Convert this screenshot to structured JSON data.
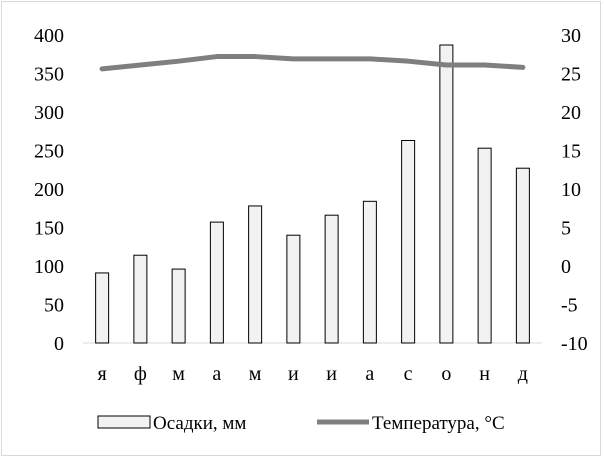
{
  "chart_data": {
    "type": "bar",
    "categories": [
      "я",
      "ф",
      "м",
      "а",
      "м",
      "и",
      "и",
      "а",
      "с",
      "о",
      "н",
      "д"
    ],
    "series": [
      {
        "name": "Осадки, мм",
        "type": "bar",
        "axis": "left",
        "values": [
          91,
          114,
          96,
          157,
          178,
          140,
          166,
          184,
          263,
          387,
          253,
          227
        ]
      },
      {
        "name": "Температура, °С",
        "type": "line",
        "axis": "right",
        "values": [
          25.6,
          26.1,
          26.6,
          27.2,
          27.2,
          26.9,
          26.9,
          26.9,
          26.6,
          26.1,
          26.1,
          25.8
        ]
      }
    ],
    "y_left": {
      "ylim": [
        0,
        400
      ],
      "ticks": [
        "0",
        "50",
        "100",
        "150",
        "200",
        "250",
        "300",
        "350",
        "400"
      ]
    },
    "y_right": {
      "ylim": [
        -10,
        30
      ],
      "ticks": [
        "-10",
        "-5",
        "0",
        "5",
        "10",
        "15",
        "20",
        "25",
        "30"
      ]
    },
    "title": "",
    "xlabel": "",
    "ylabel": "",
    "grid": false,
    "legend_position": "bottom",
    "colors": {
      "bar_fill": "#f2f2f2",
      "bar_stroke": "#000000",
      "line": "#7f7f7f",
      "axis": "#d9d9d9"
    }
  }
}
